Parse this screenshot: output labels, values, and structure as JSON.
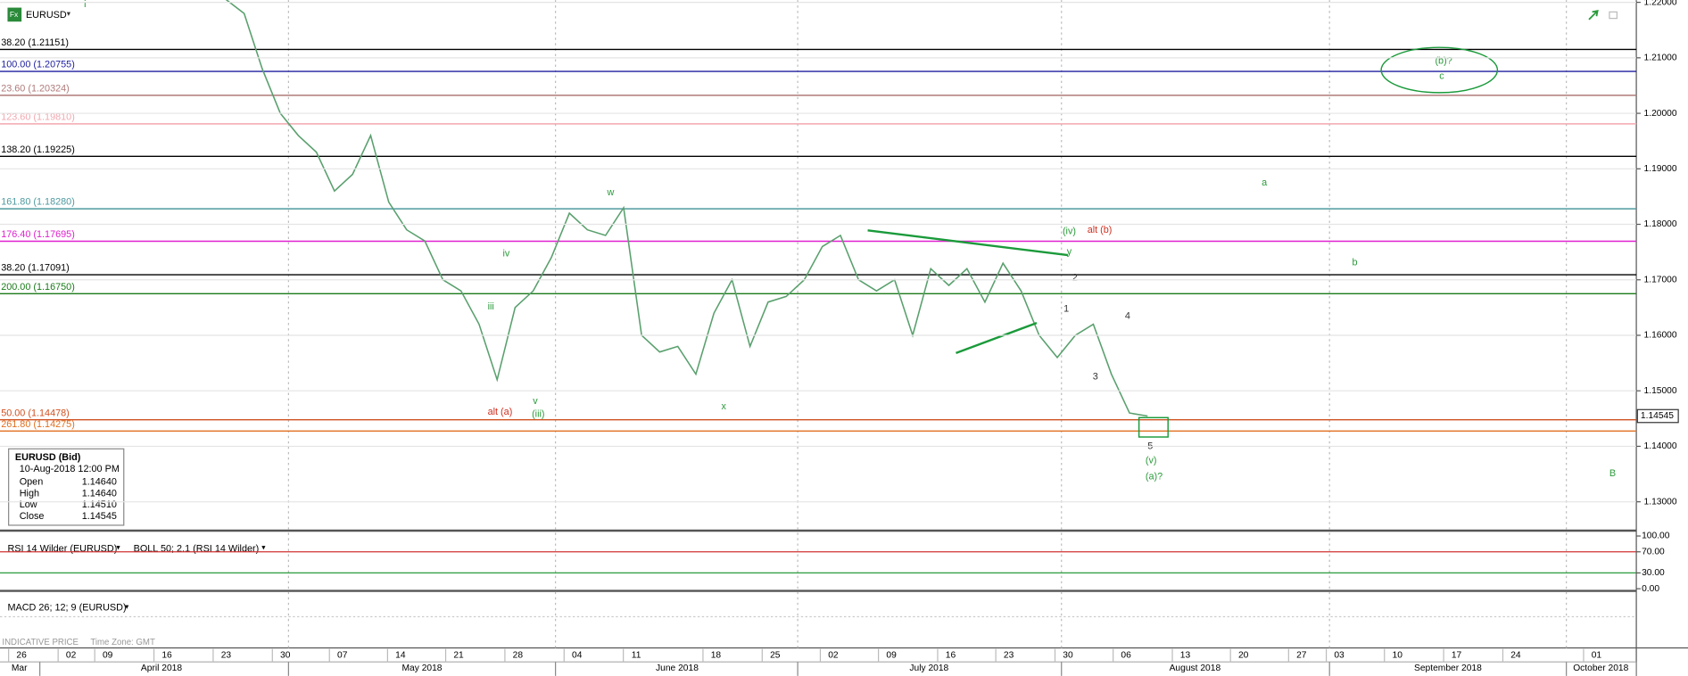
{
  "header": {
    "badge": "Fx",
    "symbol": "EURUSD"
  },
  "price_axis": {
    "ylim": [
      1.125,
      1.2204
    ],
    "yticks": [
      {
        "value": 1.22,
        "label": "1.22000"
      },
      {
        "value": 1.21,
        "label": "1.21000"
      },
      {
        "value": 1.2,
        "label": "1.20000"
      },
      {
        "value": 1.19,
        "label": "1.19000"
      },
      {
        "value": 1.18,
        "label": "1.18000"
      },
      {
        "value": 1.17,
        "label": "1.17000"
      },
      {
        "value": 1.16,
        "label": "1.16000"
      },
      {
        "value": 1.15,
        "label": "1.15000"
      },
      {
        "value": 1.14,
        "label": "1.14000"
      },
      {
        "value": 1.13,
        "label": "1.13000"
      }
    ],
    "last_price": {
      "value": 1.14545,
      "label": "1.14545"
    }
  },
  "price_series": {
    "color": "#5aa06e",
    "values": [
      1.2205,
      1.218,
      1.208,
      1.2,
      1.196,
      1.193,
      1.186,
      1.189,
      1.196,
      1.184,
      1.179,
      1.177,
      1.17,
      1.168,
      1.162,
      1.152,
      1.165,
      1.168,
      1.174,
      1.182,
      1.179,
      1.178,
      1.183,
      1.16,
      1.157,
      1.158,
      1.153,
      1.164,
      1.17,
      1.158,
      1.166,
      1.167,
      1.17,
      1.176,
      1.178,
      1.17,
      1.168,
      1.17,
      1.16,
      1.172,
      1.169,
      1.172,
      1.166,
      1.173,
      1.168,
      1.16,
      1.156,
      1.16,
      1.162,
      1.153,
      1.146,
      1.14545
    ]
  },
  "fib_levels": [
    {
      "label": "38.20 (1.21151)",
      "value": 1.21151,
      "color": "#000000"
    },
    {
      "label": "100.00 (1.20755)",
      "value": 1.20755,
      "color": "#1f1f9f"
    },
    {
      "label": "23.60 (1.20324)",
      "value": 1.20324,
      "color": "#b07a7a"
    },
    {
      "label": "123.60 (1.19810)",
      "value": 1.1981,
      "color": "#f2a8b0"
    },
    {
      "label": "138.20 (1.19225)",
      "value": 1.19225,
      "color": "#000000"
    },
    {
      "label": "161.80 (1.18280)",
      "value": 1.1828,
      "color": "#4f9aa0"
    },
    {
      "label": "176.40 (1.17695)",
      "value": 1.17695,
      "color": "#e020d0"
    },
    {
      "label": "38.20 (1.17091)",
      "value": 1.17091,
      "color": "#000000"
    },
    {
      "label": "200.00 (1.16750)",
      "value": 1.1675,
      "color": "#1a7a1a"
    },
    {
      "label": "50.00 (1.14478)",
      "value": 1.14478,
      "color": "#d05020"
    },
    {
      "label": "261.80 (1.14275)",
      "value": 1.14275,
      "color": "#e07020"
    }
  ],
  "waves": [
    "i",
    "iv",
    "iii",
    "v",
    "(iii)",
    "alt (a)",
    "w",
    "x",
    "(iv)",
    "alt (b)",
    "y",
    "2",
    "1",
    "3",
    "4",
    "5",
    "(v)",
    "(a)?",
    "a",
    "b",
    "B",
    "(b)?",
    "c"
  ],
  "info_box": {
    "title": "EURUSD (Bid)",
    "timestamp": "10-Aug-2018 12:00 PM",
    "rows": [
      [
        "Open",
        "1.14640"
      ],
      [
        "High",
        "1.14640"
      ],
      [
        "Low",
        "1.14510"
      ],
      [
        "Close",
        "1.14545"
      ]
    ]
  },
  "rsi_pane": {
    "label": "RSI 14 Wilder (EURUSD)",
    "overlay": "BOLL 50; 2.1 (RSI 14 Wilder)",
    "ylim": [
      0,
      100
    ],
    "yticks": [
      {
        "value": 100,
        "label": "100.00"
      },
      {
        "value": 70,
        "label": "70.00"
      },
      {
        "value": 30,
        "label": "30.00"
      },
      {
        "value": 0,
        "label": "0.00"
      }
    ]
  },
  "macd_pane": {
    "label": "MACD 26; 12; 9 (EURUSD)"
  },
  "footer": {
    "price_type": "INDICATIVE PRICE",
    "timezone": "Time Zone: GMT"
  },
  "date_axis": {
    "days": [
      "26",
      "02",
      "09",
      "16",
      "23",
      "30",
      "07",
      "14",
      "21",
      "28",
      "04",
      "11",
      "18",
      "25",
      "02",
      "09",
      "16",
      "23",
      "30",
      "06",
      "13",
      "20",
      "27",
      "03",
      "10",
      "17",
      "24",
      "01"
    ],
    "months": [
      "Mar",
      "April 2018",
      "May 2018",
      "June 2018",
      "July 2018",
      "August 2018",
      "September 2018",
      "October 2018"
    ]
  }
}
